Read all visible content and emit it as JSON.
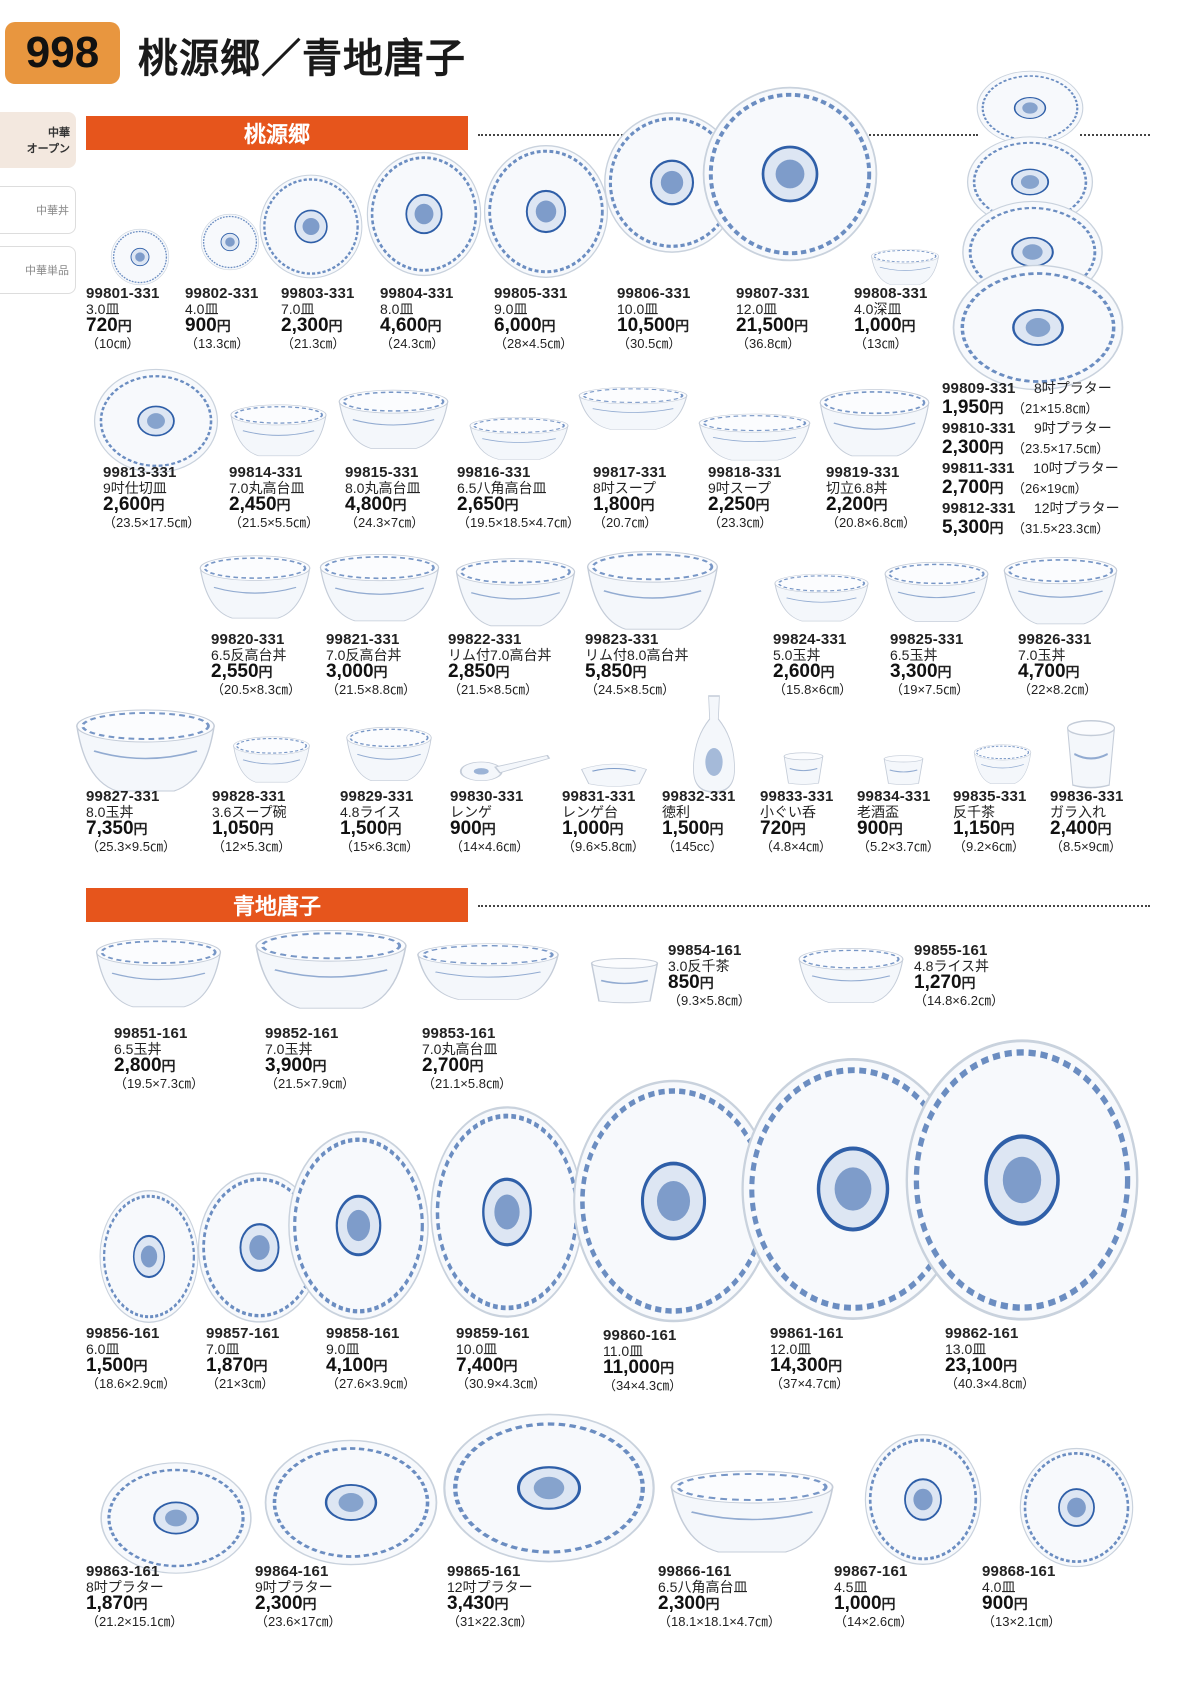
{
  "page": {
    "number": "998",
    "title": "桃源郷／青地唐子"
  },
  "side_tabs": [
    {
      "label_line1": "中華",
      "label_line2": "オープン"
    },
    {
      "label": "中華丼"
    },
    {
      "label": "中華単品"
    }
  ],
  "sections": {
    "s1": "桃源郷",
    "s2": "青地唐子"
  },
  "yen": "円",
  "products": [
    {
      "code": "99801-331",
      "name": "3.0皿",
      "price": "720",
      "size": "（10㎝）"
    },
    {
      "code": "99802-331",
      "name": "4.0皿",
      "price": "900",
      "size": "（13.3㎝）"
    },
    {
      "code": "99803-331",
      "name": "7.0皿",
      "price": "2,300",
      "size": "（21.3㎝）"
    },
    {
      "code": "99804-331",
      "name": "8.0皿",
      "price": "4,600",
      "size": "（24.3㎝）"
    },
    {
      "code": "99805-331",
      "name": "9.0皿",
      "price": "6,000",
      "size": "（28×4.5㎝）"
    },
    {
      "code": "99806-331",
      "name": "10.0皿",
      "price": "10,500",
      "size": "（30.5㎝）"
    },
    {
      "code": "99807-331",
      "name": "12.0皿",
      "price": "21,500",
      "size": "（36.8㎝）"
    },
    {
      "code": "99808-331",
      "name": "4.0深皿",
      "price": "1,000",
      "size": "（13㎝）"
    },
    {
      "code": "99809-331",
      "name": "8吋プラター",
      "price": "1,950",
      "size": "（21×15.8㎝）"
    },
    {
      "code": "99810-331",
      "name": "9吋プラター",
      "price": "2,300",
      "size": "（23.5×17.5㎝）"
    },
    {
      "code": "99811-331",
      "name": "10吋プラター",
      "price": "2,700",
      "size": "（26×19㎝）"
    },
    {
      "code": "99812-331",
      "name": "12吋プラター",
      "price": "5,300",
      "size": "（31.5×23.3㎝）"
    },
    {
      "code": "99813-331",
      "name": "9吋仕切皿",
      "price": "2,600",
      "size": "（23.5×17.5㎝）"
    },
    {
      "code": "99814-331",
      "name": "7.0丸高台皿",
      "price": "2,450",
      "size": "（21.5×5.5㎝）"
    },
    {
      "code": "99815-331",
      "name": "8.0丸高台皿",
      "price": "4,800",
      "size": "（24.3×7㎝）"
    },
    {
      "code": "99816-331",
      "name": "6.5八角高台皿",
      "price": "2,650",
      "size": "（19.5×18.5×4.7㎝）"
    },
    {
      "code": "99817-331",
      "name": "8吋スープ",
      "price": "1,800",
      "size": "（20.7㎝）"
    },
    {
      "code": "99818-331",
      "name": "9吋スープ",
      "price": "2,250",
      "size": "（23.3㎝）"
    },
    {
      "code": "99819-331",
      "name": "切立6.8丼",
      "price": "2,200",
      "size": "（20.8×6.8㎝）"
    },
    {
      "code": "99820-331",
      "name": "6.5反高台丼",
      "price": "2,550",
      "size": "（20.5×8.3㎝）"
    },
    {
      "code": "99821-331",
      "name": "7.0反高台丼",
      "price": "3,000",
      "size": "（21.5×8.8㎝）"
    },
    {
      "code": "99822-331",
      "name": "リム付7.0高台丼",
      "price": "2,850",
      "size": "（21.5×8.5㎝）"
    },
    {
      "code": "99823-331",
      "name": "リム付8.0高台丼",
      "price": "5,850",
      "size": "（24.5×8.5㎝）"
    },
    {
      "code": "99824-331",
      "name": "5.0玉丼",
      "price": "2,600",
      "size": "（15.8×6㎝）"
    },
    {
      "code": "99825-331",
      "name": "6.5玉丼",
      "price": "3,300",
      "size": "（19×7.5㎝）"
    },
    {
      "code": "99826-331",
      "name": "7.0玉丼",
      "price": "4,700",
      "size": "（22×8.2㎝）"
    },
    {
      "code": "99827-331",
      "name": "8.0玉丼",
      "price": "7,350",
      "size": "（25.3×9.5㎝）"
    },
    {
      "code": "99828-331",
      "name": "3.6スープ碗",
      "price": "1,050",
      "size": "（12×5.3㎝）"
    },
    {
      "code": "99829-331",
      "name": "4.8ライス",
      "price": "1,500",
      "size": "（15×6.3㎝）"
    },
    {
      "code": "99830-331",
      "name": "レンゲ",
      "price": "900",
      "size": "（14×4.6㎝）"
    },
    {
      "code": "99831-331",
      "name": "レンゲ台",
      "price": "1,000",
      "size": "（9.6×5.8㎝）"
    },
    {
      "code": "99832-331",
      "name": "徳利",
      "price": "1,500",
      "size": "（145cc）"
    },
    {
      "code": "99833-331",
      "name": "小ぐい呑",
      "price": "720",
      "size": "（4.8×4㎝）"
    },
    {
      "code": "99834-331",
      "name": "老酒盃",
      "price": "900",
      "size": "（5.2×3.7㎝）"
    },
    {
      "code": "99835-331",
      "name": "反千茶",
      "price": "1,150",
      "size": "（9.2×6㎝）"
    },
    {
      "code": "99836-331",
      "name": "ガラ入れ",
      "price": "2,400",
      "size": "（8.5×9㎝）"
    },
    {
      "code": "99851-161",
      "name": "6.5玉丼",
      "price": "2,800",
      "size": "（19.5×7.3㎝）"
    },
    {
      "code": "99852-161",
      "name": "7.0玉丼",
      "price": "3,900",
      "size": "（21.5×7.9㎝）"
    },
    {
      "code": "99853-161",
      "name": "7.0丸高台皿",
      "price": "2,700",
      "size": "（21.1×5.8㎝）"
    },
    {
      "code": "99854-161",
      "name": "3.0反千茶",
      "price": "850",
      "size": "（9.3×5.8㎝）"
    },
    {
      "code": "99855-161",
      "name": "4.8ライス丼",
      "price": "1,270",
      "size": "（14.8×6.2㎝）"
    },
    {
      "code": "99856-161",
      "name": "6.0皿",
      "price": "1,500",
      "size": "（18.6×2.9㎝）"
    },
    {
      "code": "99857-161",
      "name": "7.0皿",
      "price": "1,870",
      "size": "（21×3㎝）"
    },
    {
      "code": "99858-161",
      "name": "9.0皿",
      "price": "4,100",
      "size": "（27.6×3.9㎝）"
    },
    {
      "code": "99859-161",
      "name": "10.0皿",
      "price": "7,400",
      "size": "（30.9×4.3㎝）"
    },
    {
      "code": "99860-161",
      "name": "11.0皿",
      "price": "11,000",
      "size": "（34×4.3㎝）"
    },
    {
      "code": "99861-161",
      "name": "12.0皿",
      "price": "14,300",
      "size": "（37×4.7㎝）"
    },
    {
      "code": "99862-161",
      "name": "13.0皿",
      "price": "23,100",
      "size": "（40.3×4.8㎝）"
    },
    {
      "code": "99863-161",
      "name": "8吋プラター",
      "price": "1,870",
      "size": "（21.2×15.1㎝）"
    },
    {
      "code": "99864-161",
      "name": "9吋プラター",
      "price": "2,300",
      "size": "（23.6×17㎝）"
    },
    {
      "code": "99865-161",
      "name": "12吋プラター",
      "price": "3,430",
      "size": "（31×22.3㎝）"
    },
    {
      "code": "99866-161",
      "name": "6.5八角高台皿",
      "price": "2,300",
      "size": "（18.1×18.1×4.7㎝）"
    },
    {
      "code": "99867-161",
      "name": "4.5皿",
      "price": "1,000",
      "size": "（14×2.6㎝）"
    },
    {
      "code": "99868-161",
      "name": "4.0皿",
      "price": "900",
      "size": "（13×2.1㎝）"
    }
  ],
  "colors": {
    "accent_orange": "#e6551c",
    "page_tab": "#e8963f",
    "porcelain_blue": "#2f5fa8"
  }
}
